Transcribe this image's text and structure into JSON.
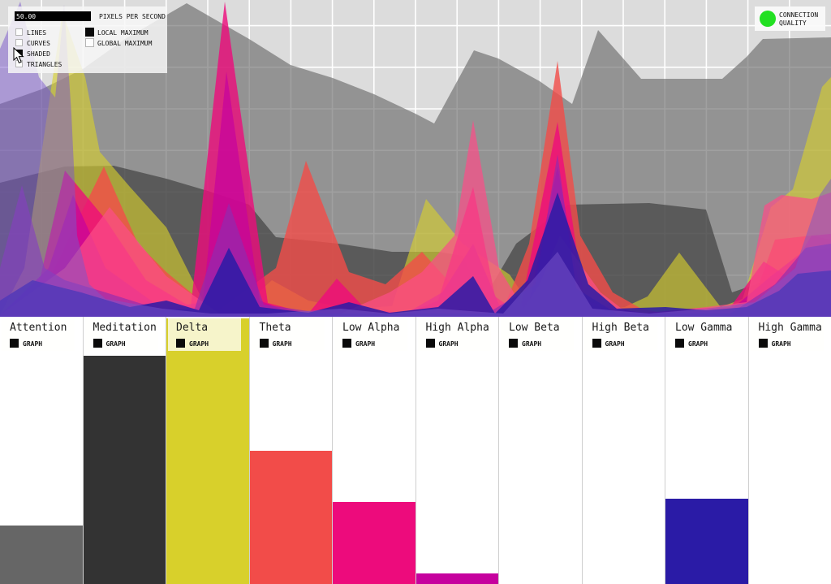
{
  "controls": {
    "slider": {
      "value": "50.00",
      "label": "PIXELS PER SECOND",
      "fill_pct": 96
    },
    "render_modes": [
      {
        "label": "LINES",
        "checked": false
      },
      {
        "label": "CURVES",
        "checked": false
      },
      {
        "label": "SHADED",
        "checked": true
      },
      {
        "label": "TRIANGLES",
        "checked": false
      }
    ],
    "maximum_modes": [
      {
        "label": "LOCAL MAXIMUM",
        "checked": true
      },
      {
        "label": "GLOBAL MAXIMUM",
        "checked": false
      }
    ]
  },
  "connection": {
    "label_line1": "CONNECTION",
    "label_line2": "QUALITY",
    "status_color": "#22e022"
  },
  "graph_label": "GRAPH",
  "channels": [
    {
      "label": "Attention",
      "color": "#666666",
      "value_pct": 22,
      "graph_checked": true,
      "highlighted": false
    },
    {
      "label": "Meditation",
      "color": "#333333",
      "value_pct": 86,
      "graph_checked": true,
      "highlighted": false
    },
    {
      "label": "Delta",
      "color": "#d8d02b",
      "value_pct": 100,
      "graph_checked": true,
      "highlighted": true
    },
    {
      "label": "Theta",
      "color": "#f24c49",
      "value_pct": 50,
      "graph_checked": true,
      "highlighted": false
    },
    {
      "label": "Low Alpha",
      "color": "#ed0b7c",
      "value_pct": 31,
      "graph_checked": true,
      "highlighted": false
    },
    {
      "label": "High Alpha",
      "color": "#c6019e",
      "value_pct": 4,
      "graph_checked": true,
      "highlighted": false
    },
    {
      "label": "Low Beta",
      "color": "#fb4d88",
      "value_pct": 0,
      "graph_checked": true,
      "highlighted": false
    },
    {
      "label": "High Beta",
      "color": "#8f2bb0",
      "value_pct": 0,
      "graph_checked": true,
      "highlighted": false
    },
    {
      "label": "Low Gamma",
      "color": "#2a1ba6",
      "value_pct": 32,
      "graph_checked": true,
      "highlighted": false
    },
    {
      "label": "High Gamma",
      "color": "#7a55cc",
      "value_pct": 0,
      "graph_checked": true,
      "highlighted": false
    }
  ],
  "chart_data": {
    "type": "area",
    "x_range": [
      0,
      1024
    ],
    "y_range": [
      0,
      390
    ],
    "grid": true,
    "grid_spacing_px": 51.2,
    "background": "#dcdcdc",
    "gridline_color": "#ffffff",
    "note": "stacked translucent shaded area traces, y in screen px (0=top, 390=baseline)",
    "series": [
      {
        "name": "attention",
        "color": "#666666",
        "alpha": 0.62,
        "points": [
          [
            0,
            128
          ],
          [
            51,
            110
          ],
          [
            102,
            85
          ],
          [
            154,
            48
          ],
          [
            230,
            4
          ],
          [
            307,
            48
          ],
          [
            358,
            80
          ],
          [
            410,
            96
          ],
          [
            461,
            116
          ],
          [
            512,
            140
          ],
          [
            535,
            152
          ],
          [
            584,
            62
          ],
          [
            614,
            72
          ],
          [
            665,
            100
          ],
          [
            705,
            128
          ],
          [
            737,
            37
          ],
          [
            790,
            97
          ],
          [
            890,
            97
          ],
          [
            920,
            70
          ],
          [
            940,
            48
          ],
          [
            1024,
            46
          ]
        ]
      },
      {
        "name": "meditation",
        "color": "#333333",
        "alpha": 0.6,
        "points": [
          [
            0,
            225
          ],
          [
            80,
            205
          ],
          [
            140,
            204
          ],
          [
            205,
            220
          ],
          [
            256,
            235
          ],
          [
            307,
            252
          ],
          [
            340,
            292
          ],
          [
            417,
            300
          ],
          [
            483,
            310
          ],
          [
            540,
            310
          ],
          [
            570,
            315
          ],
          [
            595,
            370
          ],
          [
            636,
            300
          ],
          [
            700,
            252
          ],
          [
            800,
            250
          ],
          [
            870,
            258
          ],
          [
            902,
            360
          ],
          [
            955,
            342
          ],
          [
            1024,
            352
          ]
        ]
      },
      {
        "name": "delta",
        "color": "#d8d02b",
        "alpha": 0.62,
        "points": [
          [
            0,
            388
          ],
          [
            30,
            330
          ],
          [
            77,
            15
          ],
          [
            105,
            95
          ],
          [
            123,
            187
          ],
          [
            160,
            230
          ],
          [
            205,
            280
          ],
          [
            255,
            380
          ],
          [
            290,
            386
          ],
          [
            335,
            345
          ],
          [
            380,
            370
          ],
          [
            430,
            380
          ],
          [
            483,
            377
          ],
          [
            525,
            245
          ],
          [
            570,
            300
          ],
          [
            628,
            338
          ],
          [
            660,
            386
          ],
          [
            700,
            386
          ],
          [
            770,
            378
          ],
          [
            798,
            365
          ],
          [
            837,
            311
          ],
          [
            888,
            378
          ],
          [
            915,
            368
          ],
          [
            950,
            255
          ],
          [
            977,
            233
          ],
          [
            1013,
            107
          ],
          [
            1024,
            95
          ]
        ]
      },
      {
        "name": "theta",
        "color": "#f24c49",
        "alpha": 0.8,
        "points": [
          [
            0,
            388
          ],
          [
            60,
            345
          ],
          [
            128,
            205
          ],
          [
            170,
            300
          ],
          [
            205,
            335
          ],
          [
            265,
            385
          ],
          [
            340,
            330
          ],
          [
            377,
            198
          ],
          [
            430,
            335
          ],
          [
            475,
            350
          ],
          [
            520,
            310
          ],
          [
            570,
            365
          ],
          [
            620,
            382
          ],
          [
            652,
            300
          ],
          [
            687,
            75
          ],
          [
            715,
            290
          ],
          [
            755,
            360
          ],
          [
            790,
            380
          ],
          [
            820,
            386
          ],
          [
            880,
            380
          ],
          [
            925,
            378
          ],
          [
            955,
            295
          ],
          [
            1000,
            290
          ],
          [
            1024,
            295
          ]
        ]
      },
      {
        "name": "low_alpha",
        "color": "#ed0b7c",
        "alpha": 0.8,
        "points": [
          [
            0,
            388
          ],
          [
            50,
            340
          ],
          [
            80,
            210
          ],
          [
            130,
            270
          ],
          [
            180,
            345
          ],
          [
            235,
            378
          ],
          [
            277,
            2
          ],
          [
            330,
            373
          ],
          [
            380,
            386
          ],
          [
            415,
            343
          ],
          [
            450,
            380
          ],
          [
            500,
            386
          ],
          [
            540,
            370
          ],
          [
            583,
            230
          ],
          [
            610,
            365
          ],
          [
            640,
            386
          ],
          [
            687,
            150
          ],
          [
            720,
            370
          ],
          [
            790,
            386
          ],
          [
            850,
            380
          ],
          [
            900,
            378
          ],
          [
            941,
            322
          ],
          [
            970,
            340
          ],
          [
            1000,
            290
          ],
          [
            1024,
            288
          ]
        ]
      },
      {
        "name": "high_alpha",
        "color": "#c6019e",
        "alpha": 0.7,
        "points": [
          [
            0,
            388
          ],
          [
            60,
            330
          ],
          [
            90,
            240
          ],
          [
            130,
            330
          ],
          [
            200,
            380
          ],
          [
            250,
            372
          ],
          [
            279,
            88
          ],
          [
            320,
            370
          ],
          [
            360,
            386
          ],
          [
            500,
            386
          ],
          [
            545,
            360
          ],
          [
            583,
            300
          ],
          [
            615,
            375
          ],
          [
            650,
            382
          ],
          [
            687,
            205
          ],
          [
            718,
            375
          ],
          [
            800,
            386
          ],
          [
            900,
            382
          ],
          [
            950,
            340
          ],
          [
            993,
            307
          ],
          [
            1024,
            305
          ]
        ]
      },
      {
        "name": "low_beta",
        "color": "#fb4d88",
        "alpha": 0.72,
        "points": [
          [
            0,
            388
          ],
          [
            80,
            330
          ],
          [
            135,
            255
          ],
          [
            205,
            340
          ],
          [
            270,
            386
          ],
          [
            420,
            386
          ],
          [
            480,
            360
          ],
          [
            520,
            335
          ],
          [
            560,
            290
          ],
          [
            583,
            148
          ],
          [
            615,
            330
          ],
          [
            645,
            380
          ],
          [
            665,
            350
          ],
          [
            690,
            290
          ],
          [
            740,
            360
          ],
          [
            770,
            383
          ],
          [
            800,
            386
          ],
          [
            870,
            378
          ],
          [
            920,
            372
          ],
          [
            942,
            253
          ],
          [
            963,
            240
          ],
          [
            1000,
            245
          ],
          [
            1024,
            237
          ]
        ]
      },
      {
        "name": "high_beta",
        "color": "#8f2bb0",
        "alpha": 0.65,
        "points": [
          [
            0,
            330
          ],
          [
            27,
            228
          ],
          [
            55,
            330
          ],
          [
            80,
            345
          ],
          [
            130,
            360
          ],
          [
            200,
            382
          ],
          [
            240,
            380
          ],
          [
            282,
            250
          ],
          [
            325,
            375
          ],
          [
            400,
            386
          ],
          [
            600,
            386
          ],
          [
            660,
            350
          ],
          [
            687,
            190
          ],
          [
            710,
            355
          ],
          [
            760,
            386
          ],
          [
            900,
            386
          ],
          [
            955,
            350
          ],
          [
            993,
            305
          ],
          [
            1024,
            300
          ]
        ]
      },
      {
        "name": "low_gamma",
        "color": "#2a1ba6",
        "alpha": 0.85,
        "points": [
          [
            0,
            370
          ],
          [
            40,
            345
          ],
          [
            100,
            360
          ],
          [
            160,
            378
          ],
          [
            205,
            370
          ],
          [
            245,
            382
          ],
          [
            282,
            305
          ],
          [
            320,
            378
          ],
          [
            380,
            385
          ],
          [
            430,
            372
          ],
          [
            480,
            385
          ],
          [
            540,
            378
          ],
          [
            583,
            340
          ],
          [
            610,
            386
          ],
          [
            650,
            345
          ],
          [
            687,
            237
          ],
          [
            725,
            350
          ],
          [
            760,
            380
          ],
          [
            820,
            378
          ],
          [
            870,
            382
          ],
          [
            920,
            378
          ],
          [
            960,
            358
          ],
          [
            983,
            337
          ],
          [
            1024,
            333
          ]
        ]
      },
      {
        "name": "high_gamma",
        "color": "#7a55cc",
        "alpha": 0.5,
        "points": [
          [
            0,
            60
          ],
          [
            25,
            2
          ],
          [
            48,
            95
          ],
          [
            68,
            120
          ],
          [
            79,
            6
          ],
          [
            88,
            140
          ],
          [
            95,
            290
          ],
          [
            110,
            350
          ],
          [
            130,
            368
          ],
          [
            200,
            380
          ],
          [
            260,
            386
          ],
          [
            330,
            386
          ],
          [
            420,
            380
          ],
          [
            480,
            386
          ],
          [
            540,
            380
          ],
          [
            620,
            386
          ],
          [
            687,
            310
          ],
          [
            730,
            380
          ],
          [
            800,
            386
          ],
          [
            870,
            380
          ],
          [
            930,
            372
          ],
          [
            980,
            330
          ],
          [
            1010,
            240
          ],
          [
            1024,
            220
          ]
        ]
      }
    ]
  }
}
